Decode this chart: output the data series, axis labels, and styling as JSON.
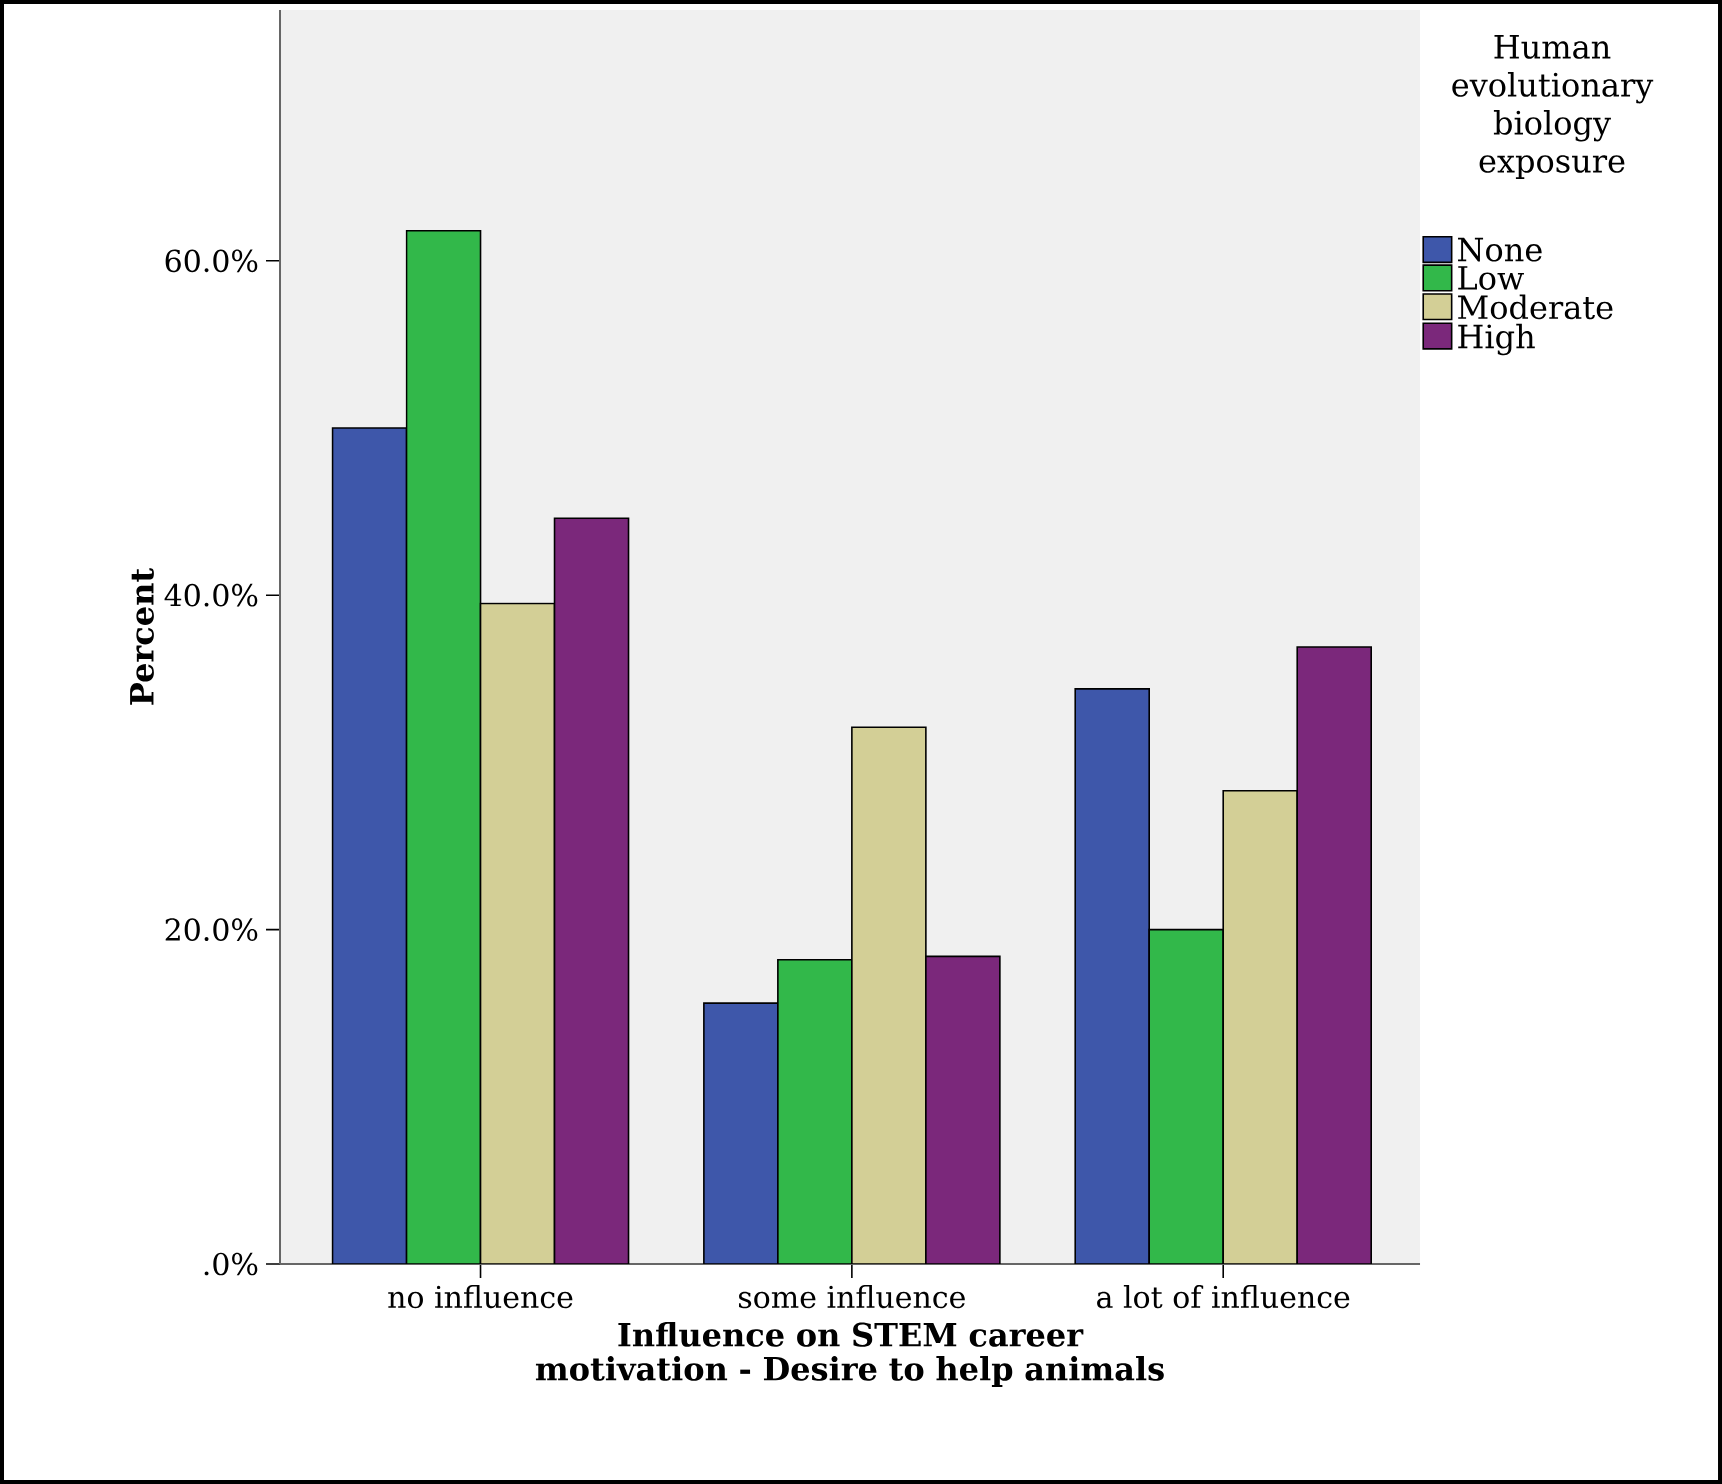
{
  "chart_data": {
    "type": "bar",
    "xlabel": "Influence on STEM career motivation - Desire to help animals",
    "ylabel": "Percent",
    "legend_title": "Human evolutionary biology exposure",
    "categories": [
      "no influence",
      "some influence",
      "a lot of influence"
    ],
    "series": [
      {
        "name": "None",
        "color": "#3e57aa",
        "values": [
          50.0,
          15.6,
          34.4
        ]
      },
      {
        "name": "Low",
        "color": "#32b84a",
        "values": [
          61.8,
          18.2,
          20.0
        ]
      },
      {
        "name": "Moderate",
        "color": "#d3cf96",
        "values": [
          39.5,
          32.1,
          28.3
        ]
      },
      {
        "name": "High",
        "color": "#7b287b",
        "values": [
          44.6,
          18.4,
          36.9
        ]
      }
    ],
    "ylim": [
      0,
      75
    ],
    "yticks": [
      {
        "value": 0,
        "label": ".0%"
      },
      {
        "value": 20,
        "label": "20.0%"
      },
      {
        "value": 40,
        "label": "40.0%"
      },
      {
        "value": 60,
        "label": "60.0%"
      }
    ],
    "grid": false,
    "legend": "top right"
  }
}
